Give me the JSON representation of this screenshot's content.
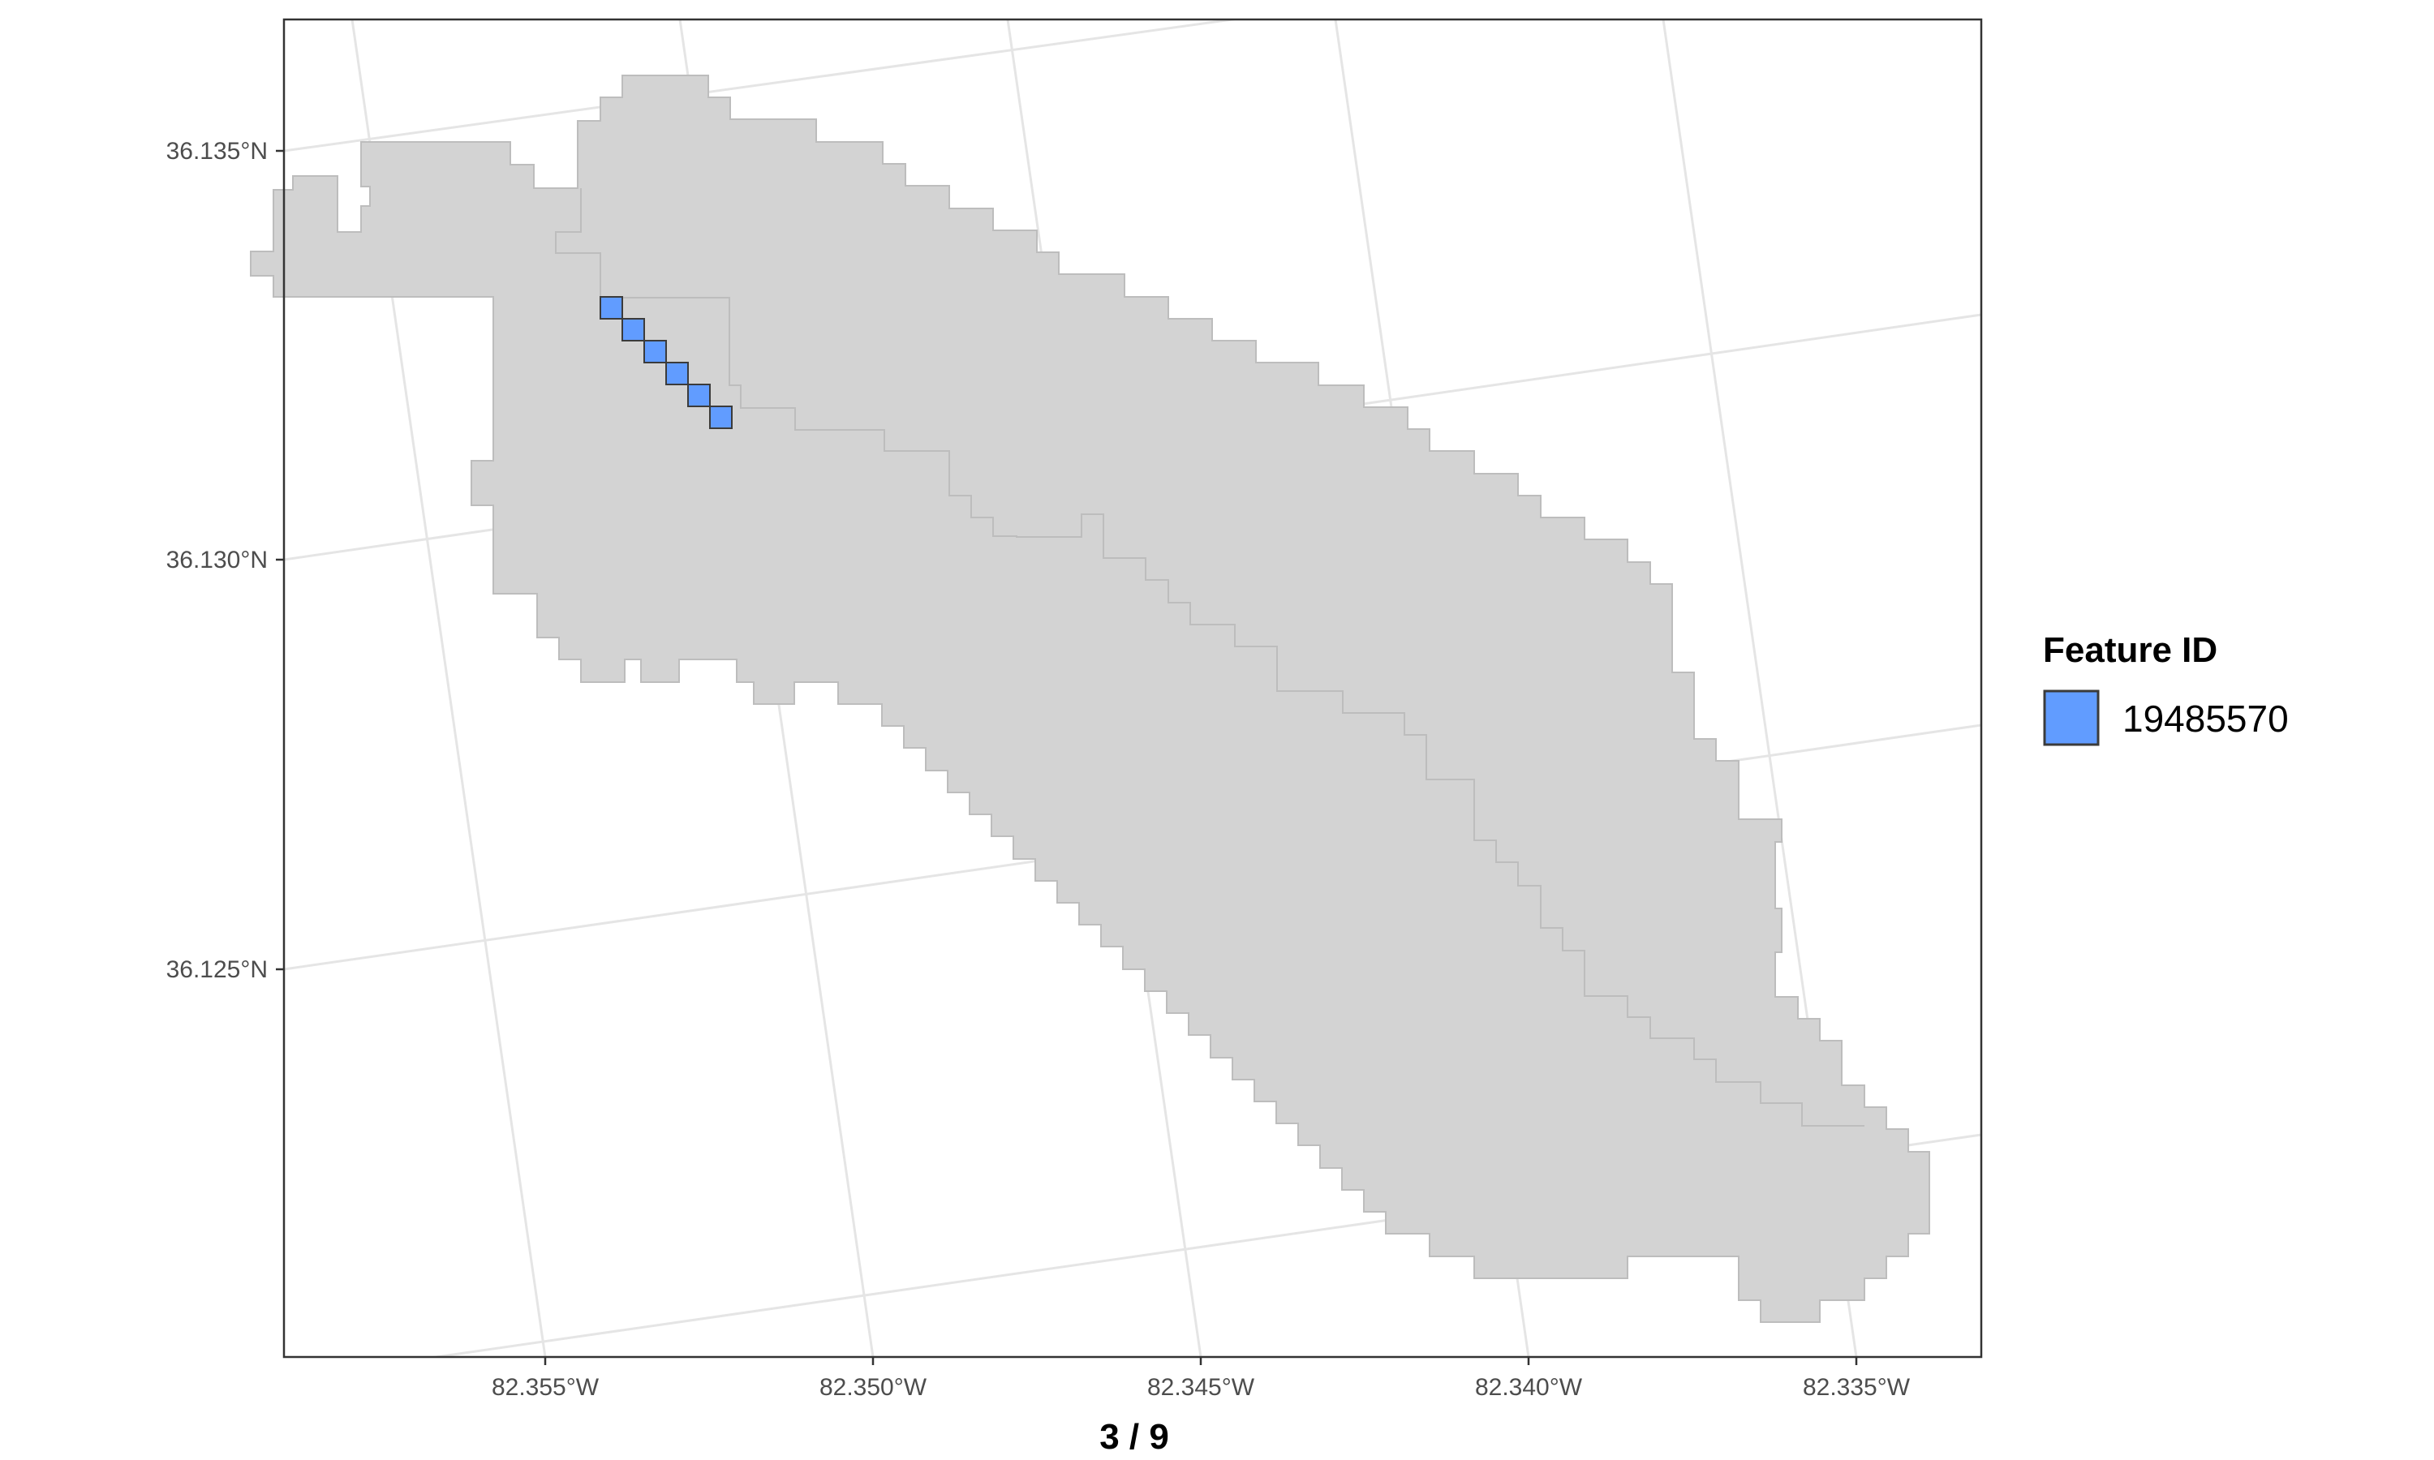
{
  "map": {
    "x_axis": {
      "ticks": [
        "82.355°W",
        "82.350°W",
        "82.345°W",
        "82.340°W",
        "82.335°W"
      ]
    },
    "y_axis": {
      "ticks": [
        "36.135°N",
        "36.130°N",
        "36.125°N"
      ]
    },
    "basin": {
      "fill": "#d3d3d3",
      "stroke": "#bdbdbd"
    },
    "highlight": {
      "fill": "#619cff",
      "stroke": "#3b3b3b"
    },
    "grid_color": "#e5e5e5",
    "panel_border": "#333333"
  },
  "legend": {
    "title": "Feature ID",
    "items": [
      {
        "label": "19485570",
        "color": "#619cff"
      }
    ]
  },
  "pager": {
    "label": "3 / 9"
  }
}
